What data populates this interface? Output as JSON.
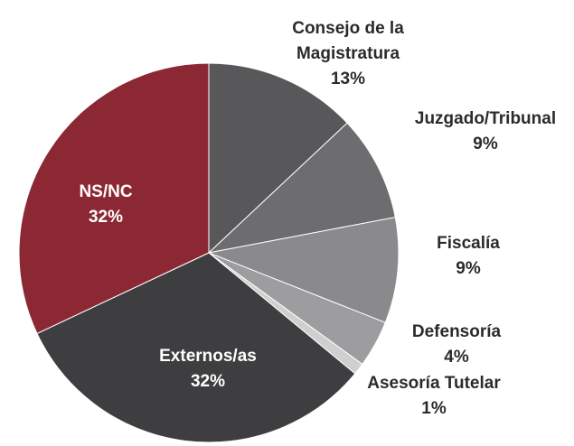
{
  "chart_data": {
    "type": "pie",
    "categories": [
      "Consejo de la Magistratura",
      "Juzgado/Tribunal",
      "Fiscalía",
      "Defensoría",
      "Asesoría Tutelar",
      "Externos/as",
      "NS/NC"
    ],
    "values": [
      13,
      9,
      9,
      4,
      1,
      32,
      32
    ],
    "value_labels": [
      "13%",
      "9%",
      "9%",
      "4%",
      "1%",
      "32%",
      "32%"
    ],
    "colors": [
      "#58585a",
      "#6d6d70",
      "#8a8a8d",
      "#9d9d9f",
      "#cfcfd0",
      "#3e3e40",
      "#8c2834"
    ]
  }
}
